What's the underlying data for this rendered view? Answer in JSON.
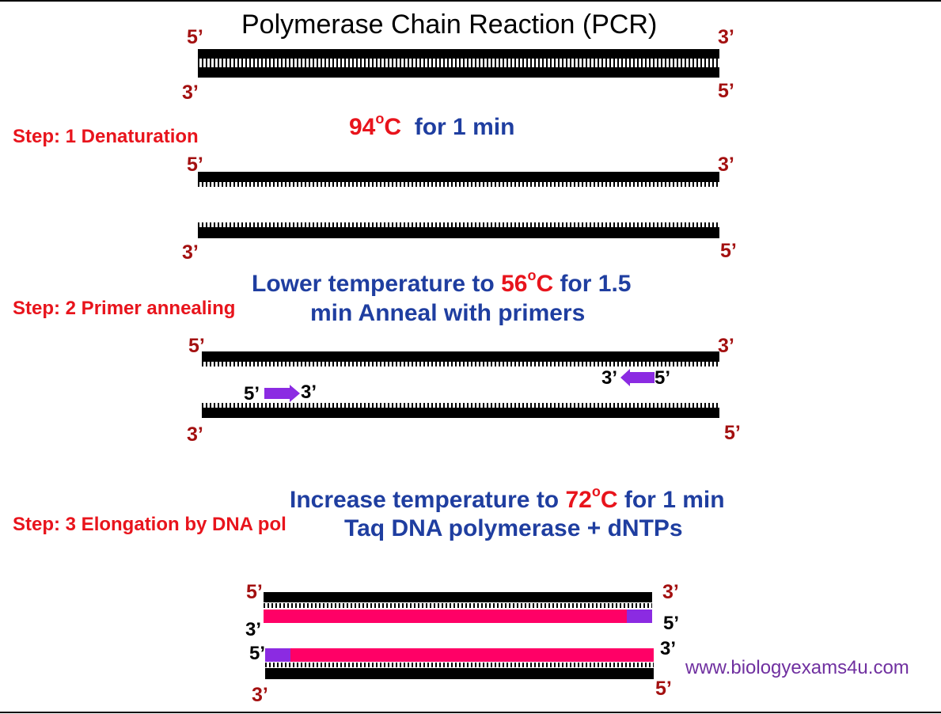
{
  "title": "Polymerase Chain Reaction (PCR)",
  "ends": {
    "five": "5’",
    "three": "3’"
  },
  "steps": {
    "step1": "Step: 1 Denaturation",
    "step2": "Step: 2 Primer annealing",
    "step3": "Step: 3 Elongation by DNA pol"
  },
  "condition1": {
    "temp": "94",
    "deg": "o",
    "unit": "C",
    "rest": "for 1 min"
  },
  "condition2": {
    "pre": "Lower temperature to ",
    "temp": "56",
    "deg": "o",
    "unit": "C",
    "post": " for 1.5",
    "line2": "min Anneal with primers"
  },
  "condition3": {
    "pre": "Increase temperature to ",
    "temp": "72",
    "deg": "o",
    "unit": "C",
    "post": " for 1 min",
    "line2": "Taq DNA polymerase + dNTPs"
  },
  "website": "www.biologyexams4u.com",
  "colors": {
    "strand": "#000000",
    "primer": "#8b2be2",
    "new_strand": "#ff0066",
    "step_label": "#e8141c",
    "condition": "#1f3ea0",
    "end_label": "#a31010",
    "website": "#7030a0"
  }
}
